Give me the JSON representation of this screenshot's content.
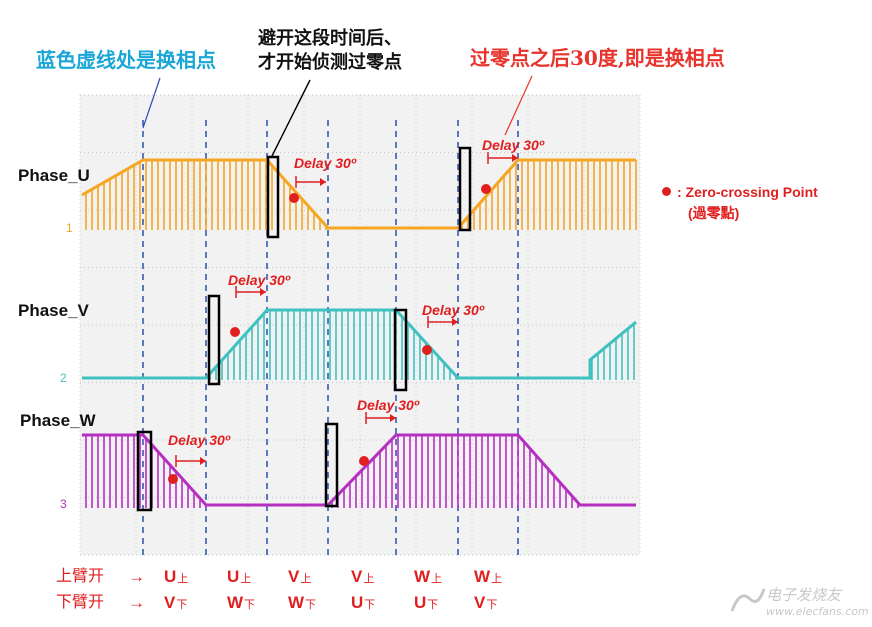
{
  "annotations": {
    "blue_caption": "蓝色虚线处是换相点",
    "black_caption_line1": "避开这段时间后、",
    "black_caption_line2": "才开始侦测过零点",
    "red_caption": "过零点之后30度,即是换相点"
  },
  "legend": {
    "text": ": Zero-crossing Point",
    "subtext": "(過零點)",
    "dot_color": "#e02020"
  },
  "phases": [
    {
      "label": "Phase_U",
      "channel": "1",
      "color": "#f5a623"
    },
    {
      "label": "Phase_V",
      "channel": "2",
      "color": "#3fc1c0"
    },
    {
      "label": "Phase_W",
      "channel": "3",
      "color": "#b530c0"
    }
  ],
  "delay_label": "Delay 30º",
  "switch_table": {
    "upper_label": "上臂开",
    "lower_label": "下臂开",
    "arrow": "→",
    "upper": [
      {
        "letter": "U",
        "sub": "上"
      },
      {
        "letter": "U",
        "sub": "上"
      },
      {
        "letter": "V",
        "sub": "上"
      },
      {
        "letter": "V",
        "sub": "上"
      },
      {
        "letter": "W",
        "sub": "上"
      },
      {
        "letter": "W",
        "sub": "上"
      }
    ],
    "lower": [
      {
        "letter": "V",
        "sub": "下"
      },
      {
        "letter": "W",
        "sub": "下"
      },
      {
        "letter": "W",
        "sub": "下"
      },
      {
        "letter": "U",
        "sub": "下"
      },
      {
        "letter": "U",
        "sub": "下"
      },
      {
        "letter": "V",
        "sub": "下"
      }
    ]
  },
  "watermark": "电子发烧友",
  "watermark_url": "www.elecfans.com",
  "colors": {
    "scope_bg": "#f2f2f2",
    "scope_grid": "#c8c8c8",
    "dashed_line": "#2a4fb0",
    "box": "#000000",
    "arrow": "#e02020"
  }
}
